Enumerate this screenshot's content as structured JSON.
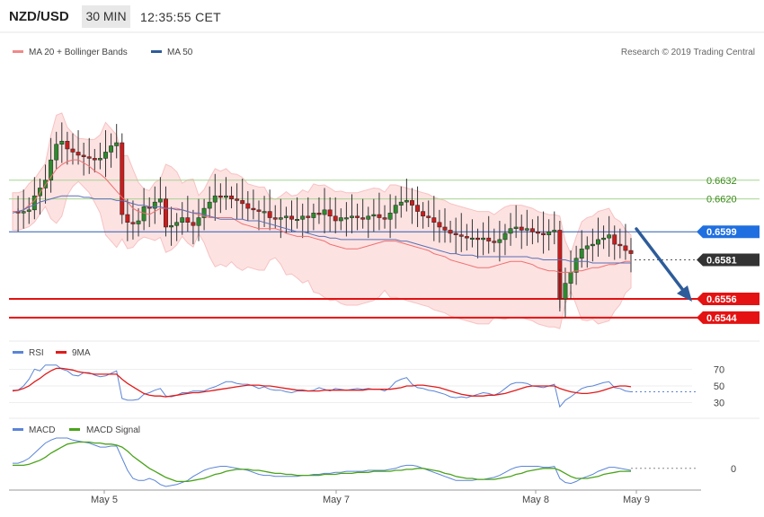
{
  "header": {
    "pair": "NZD/USD",
    "timeframe": "30 MIN",
    "time": "12:35:55 CET"
  },
  "legend_main": [
    {
      "label": "MA 20 + Bollinger Bands",
      "color": "#f08a8a"
    },
    {
      "label": "MA 50",
      "color": "#2e5c9a"
    }
  ],
  "copyright": "Research © 2019 Trading Central",
  "legend_rsi": [
    {
      "label": "RSI",
      "color": "#5b84d6"
    },
    {
      "label": "9MA",
      "color": "#e01b1b"
    }
  ],
  "legend_macd": [
    {
      "label": "MACD",
      "color": "#5b84d6"
    },
    {
      "label": "MACD Signal",
      "color": "#4aa31a"
    }
  ],
  "price_levels": [
    {
      "value": "0.6632",
      "kind": "resistance-green"
    },
    {
      "value": "0.6620",
      "kind": "resistance-green"
    },
    {
      "value": "0.6599",
      "kind": "pivot-blue"
    },
    {
      "value": "0.6581",
      "kind": "current-dark"
    },
    {
      "value": "0.6556",
      "kind": "support-red"
    },
    {
      "value": "0.6544",
      "kind": "support-red"
    }
  ],
  "rsi_ticks": [
    "70",
    "50",
    "30"
  ],
  "macd_ticks": [
    "0"
  ],
  "x_labels": [
    "May 5",
    "May 7",
    "May 8",
    "May 9"
  ],
  "chart_data": [
    {
      "type": "candlestick",
      "title": "NZD/USD 30 MIN",
      "ylim": [
        0.6529,
        0.6706
      ],
      "horizontal_levels": [
        0.6632,
        0.662,
        0.6599,
        0.6581,
        0.6556,
        0.6544
      ],
      "forecast_arrow": {
        "from": 0.6581,
        "to": 0.6544
      },
      "x_ticks": [
        "May 5",
        "May 7",
        "May 8",
        "May 9"
      ],
      "price_series": [
        0.6612,
        0.6611,
        0.6612,
        0.6613,
        0.6622,
        0.6627,
        0.6632,
        0.6645,
        0.6655,
        0.6657,
        0.6652,
        0.665,
        0.6648,
        0.6647,
        0.6646,
        0.6645,
        0.6646,
        0.665,
        0.6654,
        0.6656,
        0.661,
        0.6605,
        0.6604,
        0.6606,
        0.6615,
        0.6614,
        0.6618,
        0.662,
        0.6602,
        0.6603,
        0.6605,
        0.6608,
        0.6605,
        0.6603,
        0.6608,
        0.6614,
        0.6618,
        0.6622,
        0.6621,
        0.6622,
        0.662,
        0.6619,
        0.6617,
        0.6614,
        0.6613,
        0.6612,
        0.6612,
        0.6608,
        0.6607,
        0.6608,
        0.6609,
        0.6607,
        0.6607,
        0.6609,
        0.6608,
        0.6611,
        0.661,
        0.6613,
        0.6609,
        0.6606,
        0.6608,
        0.6608,
        0.6609,
        0.6608,
        0.6607,
        0.6609,
        0.661,
        0.6608,
        0.6607,
        0.6611,
        0.6616,
        0.6618,
        0.6619,
        0.6616,
        0.6612,
        0.6609,
        0.6608,
        0.6605,
        0.6602,
        0.66,
        0.6598,
        0.6597,
        0.6596,
        0.6595,
        0.6595,
        0.6594,
        0.6595,
        0.6593,
        0.6592,
        0.6594,
        0.6598,
        0.6601,
        0.6602,
        0.66,
        0.6601,
        0.6599,
        0.6598,
        0.6597,
        0.6599,
        0.66,
        0.6556,
        0.6566,
        0.6573,
        0.6582,
        0.6588,
        0.659,
        0.6591,
        0.6594,
        0.6595,
        0.6597,
        0.6591,
        0.659,
        0.6587,
        0.6585
      ],
      "ma20": [
        0.6612,
        0.6612,
        0.6613,
        0.6616,
        0.6619,
        0.6624,
        0.6629,
        0.6634,
        0.6639,
        0.6642,
        0.6644,
        0.6645,
        0.6645,
        0.6643,
        0.6641,
        0.6638,
        0.6636,
        0.6633,
        0.6629,
        0.6625,
        0.6621,
        0.6618,
        0.6614,
        0.6612,
        0.6611,
        0.661,
        0.6612,
        0.6614,
        0.6614,
        0.6614,
        0.6614,
        0.6613,
        0.6612,
        0.6611,
        0.661,
        0.6609,
        0.6608,
        0.6608,
        0.6608,
        0.6608,
        0.6608,
        0.6606,
        0.6604,
        0.6603,
        0.6602,
        0.6601,
        0.6601,
        0.6601,
        0.6601,
        0.66,
        0.6598,
        0.6597,
        0.6596,
        0.6596,
        0.6596,
        0.6595,
        0.6594,
        0.6593,
        0.6591,
        0.659,
        0.6589,
        0.6588,
        0.6588,
        0.6588,
        0.6589,
        0.659,
        0.6591,
        0.6592,
        0.6593,
        0.6593,
        0.6593,
        0.6592,
        0.6591,
        0.659,
        0.6589,
        0.6588,
        0.6587,
        0.6585,
        0.6584,
        0.6583,
        0.6581,
        0.658,
        0.6579,
        0.6578,
        0.6577,
        0.6576,
        0.6576,
        0.6576,
        0.6577,
        0.6578,
        0.6579,
        0.658,
        0.658,
        0.658,
        0.6579,
        0.6578,
        0.6576,
        0.6575,
        0.6574,
        0.6574,
        0.6573,
        0.6573,
        0.6573,
        0.6574,
        0.6574,
        0.6575,
        0.6576,
        0.6576,
        0.6577,
        0.6578,
        0.6578,
        0.6579,
        0.658,
        0.658
      ],
      "ma50": [
        0.6611,
        0.6612,
        0.6613,
        0.6615,
        0.6616,
        0.6618,
        0.6619,
        0.662,
        0.6621,
        0.6622,
        0.6622,
        0.6622,
        0.6622,
        0.6621,
        0.6621,
        0.662,
        0.662,
        0.662,
        0.662,
        0.6619,
        0.6619,
        0.6618,
        0.6617,
        0.6616,
        0.6616,
        0.6615,
        0.6615,
        0.6615,
        0.6614,
        0.6614,
        0.6613,
        0.6613,
        0.6612,
        0.6611,
        0.6611,
        0.661,
        0.6609,
        0.6608,
        0.6607,
        0.6607,
        0.6607,
        0.6607,
        0.6607,
        0.6606,
        0.6606,
        0.6606,
        0.6605,
        0.6604,
        0.6603,
        0.6602,
        0.6601,
        0.66,
        0.6599,
        0.6599,
        0.6598,
        0.6597,
        0.6596,
        0.6596,
        0.6595,
        0.6595,
        0.6594,
        0.6594,
        0.6594,
        0.6594,
        0.6594,
        0.6594,
        0.6594,
        0.6594,
        0.6594,
        0.6594,
        0.6594,
        0.6593,
        0.6593,
        0.6592,
        0.6591,
        0.659,
        0.6589,
        0.6588,
        0.6587,
        0.6586,
        0.6585,
        0.6585,
        0.6584,
        0.6584,
        0.6584,
        0.6583,
        0.6583,
        0.6583,
        0.6583,
        0.6583,
        0.6583,
        0.6583,
        0.6583,
        0.6583,
        0.6583,
        0.6582,
        0.6582,
        0.6581,
        0.6581,
        0.6581,
        0.6581,
        0.6581,
        0.658,
        0.658,
        0.658,
        0.658,
        0.6579,
        0.6579,
        0.6579,
        0.6579,
        0.6579,
        0.6579,
        0.6579,
        0.6579
      ]
    },
    {
      "type": "line",
      "title": "RSI",
      "ylim": [
        20,
        80
      ],
      "y_ticks": [
        70,
        50,
        30
      ],
      "series": [
        {
          "name": "RSI",
          "values": [
            45,
            45,
            50,
            58,
            70,
            68,
            75,
            75,
            75,
            70,
            68,
            63,
            62,
            66,
            66,
            63,
            61,
            62,
            65,
            68,
            35,
            33,
            33,
            34,
            40,
            42,
            45,
            47,
            38,
            37,
            39,
            42,
            42,
            44,
            44,
            44,
            47,
            49,
            52,
            55,
            55,
            53,
            52,
            52,
            50,
            47,
            49,
            46,
            45,
            45,
            43,
            42,
            44,
            44,
            44,
            45,
            48,
            46,
            44,
            47,
            46,
            45,
            46,
            47,
            46,
            47,
            46,
            46,
            44,
            48,
            55,
            58,
            60,
            52,
            48,
            47,
            45,
            44,
            42,
            40,
            37,
            36,
            37,
            36,
            38,
            40,
            42,
            41,
            39,
            42,
            47,
            52,
            54,
            54,
            53,
            50,
            49,
            48,
            50,
            52,
            25,
            33,
            37,
            42,
            47,
            49,
            50,
            52,
            54,
            55,
            48,
            47,
            44,
            43
          ]
        },
        {
          "name": "9MA",
          "values": [
            44,
            45,
            47,
            50,
            55,
            59,
            64,
            68,
            71,
            71,
            70,
            69,
            67,
            66,
            65,
            64,
            64,
            64,
            64,
            64,
            58,
            53,
            49,
            45,
            41,
            39,
            38,
            38,
            37,
            38,
            39,
            40,
            41,
            42,
            42,
            43,
            44,
            45,
            46,
            47,
            48,
            49,
            50,
            51,
            51,
            51,
            50,
            50,
            49,
            48,
            47,
            46,
            45,
            45,
            44,
            44,
            44,
            45,
            45,
            45,
            45,
            45,
            45,
            45,
            45,
            46,
            46,
            46,
            46,
            46,
            47,
            48,
            50,
            50,
            51,
            51,
            50,
            49,
            48,
            46,
            44,
            42,
            40,
            39,
            38,
            38,
            38,
            39,
            39,
            40,
            41,
            43,
            45,
            47,
            49,
            50,
            50,
            50,
            50,
            50,
            47,
            45,
            43,
            42,
            41,
            41,
            42,
            43,
            45,
            47,
            49,
            50,
            50,
            49
          ]
        }
      ]
    },
    {
      "type": "line",
      "title": "MACD",
      "y_ticks": [
        0
      ],
      "series": [
        {
          "name": "MACD",
          "values": [
            5,
            5,
            7,
            10,
            15,
            20,
            25,
            28,
            30,
            30,
            30,
            28,
            27,
            26,
            25,
            23,
            21,
            21,
            22,
            22,
            10,
            -2,
            -10,
            -12,
            -12,
            -10,
            -12,
            -16,
            -18,
            -17,
            -16,
            -14,
            -12,
            -8,
            -5,
            -2,
            0,
            1,
            2,
            2,
            1,
            0,
            -1,
            -2,
            -4,
            -6,
            -7,
            -7,
            -8,
            -8,
            -8,
            -8,
            -8,
            -7,
            -7,
            -6,
            -6,
            -5,
            -5,
            -4,
            -4,
            -3,
            -3,
            -3,
            -3,
            -2,
            -2,
            -2,
            -2,
            -1,
            0,
            2,
            3,
            3,
            2,
            0,
            -2,
            -4,
            -6,
            -8,
            -10,
            -12,
            -12,
            -12,
            -12,
            -11,
            -11,
            -10,
            -9,
            -7,
            -4,
            -1,
            1,
            2,
            2,
            2,
            2,
            1,
            1,
            2,
            -10,
            -14,
            -15,
            -13,
            -10,
            -8,
            -6,
            -3,
            -1,
            1,
            1,
            0,
            -1,
            -2
          ]
        },
        {
          "name": "MACD Signal",
          "values": [
            3,
            3,
            3,
            4,
            6,
            8,
            11,
            15,
            18,
            21,
            24,
            25,
            26,
            26,
            26,
            25,
            25,
            24,
            24,
            23,
            21,
            17,
            12,
            8,
            4,
            0,
            -3,
            -6,
            -9,
            -11,
            -13,
            -13,
            -13,
            -12,
            -11,
            -10,
            -8,
            -6,
            -5,
            -3,
            -2,
            -1,
            -1,
            -1,
            -2,
            -2,
            -3,
            -4,
            -5,
            -5,
            -6,
            -6,
            -7,
            -7,
            -7,
            -7,
            -7,
            -6,
            -6,
            -6,
            -5,
            -5,
            -5,
            -4,
            -4,
            -4,
            -3,
            -3,
            -3,
            -3,
            -2,
            -2,
            -1,
            -1,
            0,
            0,
            -1,
            -2,
            -3,
            -5,
            -6,
            -8,
            -9,
            -10,
            -10,
            -11,
            -11,
            -11,
            -11,
            -10,
            -9,
            -8,
            -6,
            -5,
            -3,
            -2,
            -1,
            0,
            0,
            0,
            -2,
            -5,
            -8,
            -10,
            -10,
            -10,
            -9,
            -8,
            -6,
            -5,
            -4,
            -3,
            -3,
            -3
          ]
        }
      ]
    }
  ]
}
